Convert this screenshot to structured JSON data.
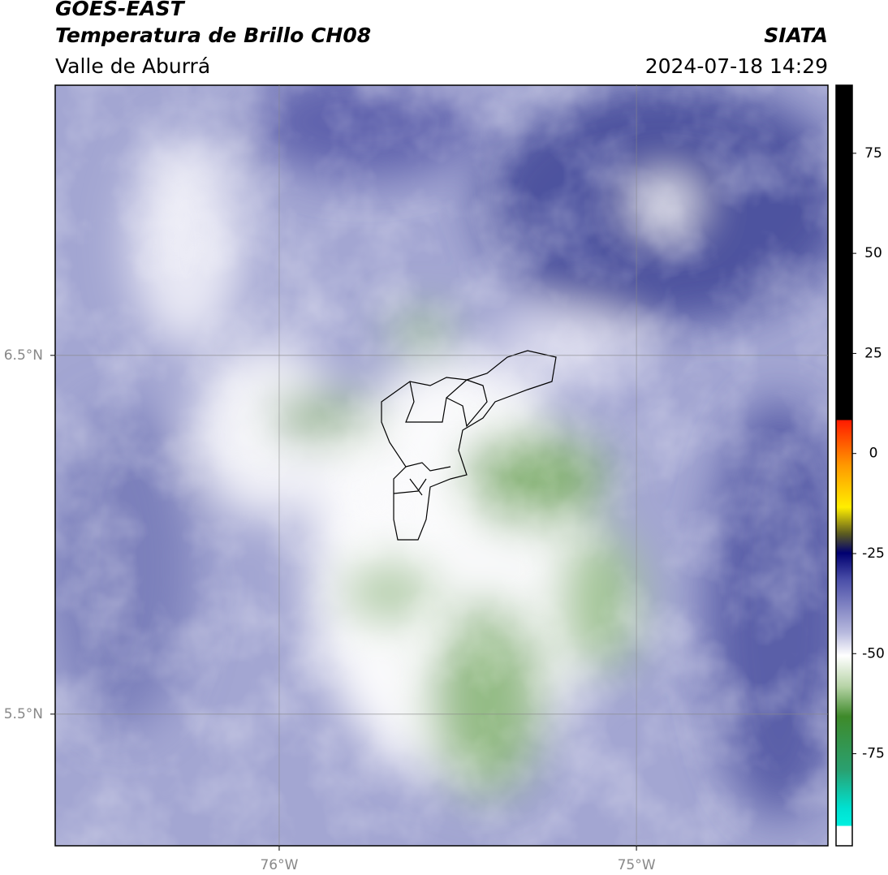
{
  "header": {
    "title": "GOES-EAST",
    "subtitle": "Temperatura de Brillo CH08",
    "source": "SIATA",
    "region": "Valle de Aburrá",
    "datetime": "2024-07-18 14:29"
  },
  "map": {
    "xlim": [
      -76.627,
      -74.464
    ],
    "ylim": [
      5.133,
      7.253
    ],
    "xticks": [
      {
        "value": -76,
        "label": "76°W"
      },
      {
        "value": -75,
        "label": "75°W"
      }
    ],
    "yticks": [
      {
        "value": 6.5,
        "label": "6.5°N"
      },
      {
        "value": 5.5,
        "label": "5.5°N"
      }
    ],
    "grid": true
  },
  "colorbar": {
    "lim": [
      -98,
      92
    ],
    "ticks": [
      75,
      50,
      25,
      0,
      -25,
      -50,
      -75
    ]
  }
}
